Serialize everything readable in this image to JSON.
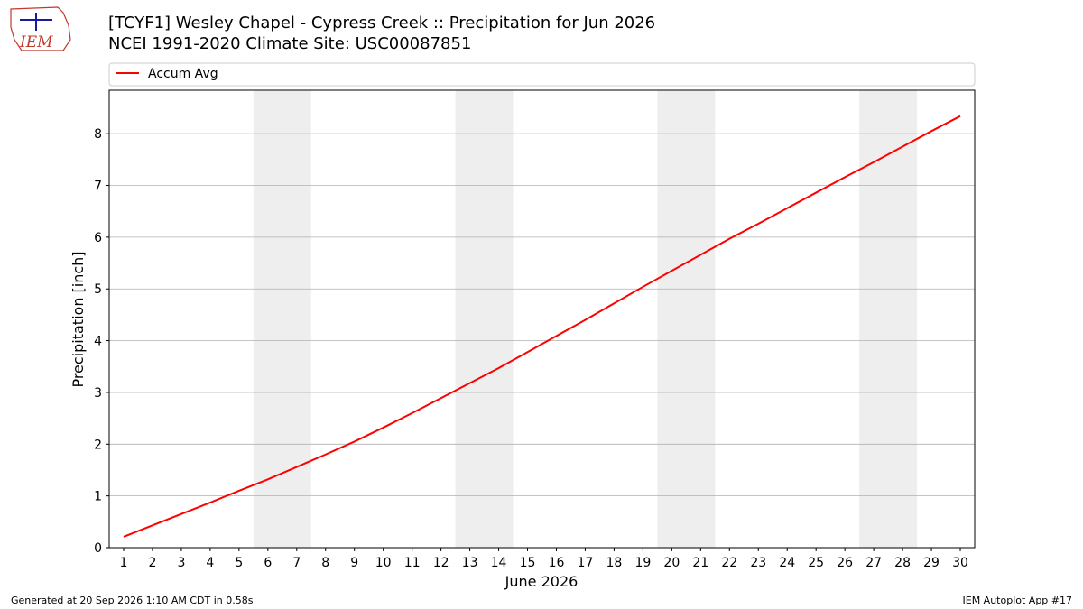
{
  "chart_data": {
    "type": "line",
    "title": "[TCYF1] Wesley Chapel - Cypress Creek :: Precipitation for Jun 2026",
    "subtitle": "NCEI 1991-2020 Climate Site: USC00087851",
    "logo_text": "IEM",
    "x_label": "June 2026",
    "y_label": "Precipitation [inch]",
    "x": [
      1,
      2,
      3,
      4,
      5,
      6,
      7,
      8,
      9,
      10,
      11,
      12,
      13,
      14,
      15,
      16,
      17,
      18,
      19,
      20,
      21,
      22,
      23,
      24,
      25,
      26,
      27,
      28,
      29,
      30
    ],
    "series": [
      {
        "name": "Accum Avg",
        "color": "#ff0000",
        "values": [
          0.21,
          0.43,
          0.65,
          0.87,
          1.1,
          1.32,
          1.56,
          1.8,
          2.05,
          2.32,
          2.6,
          2.89,
          3.18,
          3.47,
          3.78,
          4.09,
          4.4,
          4.72,
          5.04,
          5.35,
          5.66,
          5.97,
          6.26,
          6.56,
          6.86,
          7.16,
          7.45,
          7.75,
          8.05,
          8.34
        ]
      }
    ],
    "xlim": [
      0.5,
      30.5
    ],
    "ylim": [
      0,
      8.84
    ],
    "xticks": [
      1,
      2,
      3,
      4,
      5,
      6,
      7,
      8,
      9,
      10,
      11,
      12,
      13,
      14,
      15,
      16,
      17,
      18,
      19,
      20,
      21,
      22,
      23,
      24,
      25,
      26,
      27,
      28,
      29,
      30
    ],
    "yticks": [
      0,
      1,
      2,
      3,
      4,
      5,
      6,
      7,
      8
    ],
    "grid": true,
    "legend": "top",
    "shaded_spans": [
      [
        5.5,
        7.5
      ],
      [
        12.5,
        14.5
      ],
      [
        19.5,
        21.5
      ],
      [
        26.5,
        28.5
      ]
    ],
    "shade_color": "#eeeeee",
    "footer_left": "Generated at 20 Sep 2026 1:10 AM CDT in 0.58s",
    "footer_right": "IEM Autoplot App #17"
  }
}
